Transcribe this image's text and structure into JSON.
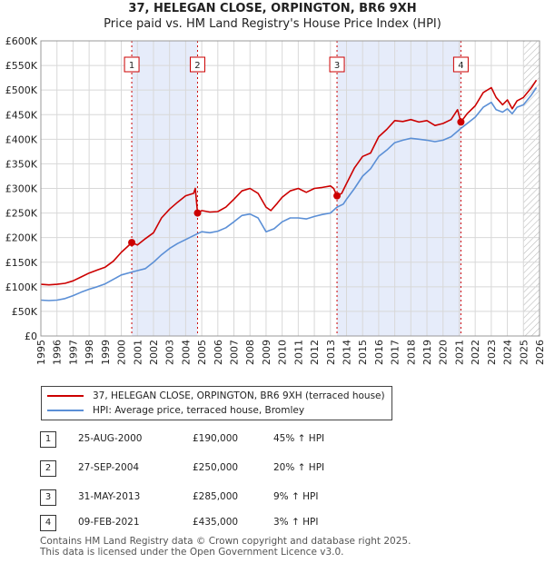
{
  "title_line1": "37, HELEGAN CLOSE, ORPINGTON, BR6 9XH",
  "title_line2": "Price paid vs. HM Land Registry's House Price Index (HPI)",
  "chart_data": {
    "type": "line",
    "x_range": [
      1995,
      2026
    ],
    "ylim": [
      0,
      600000
    ],
    "y_ticks": [
      0,
      50000,
      100000,
      150000,
      200000,
      250000,
      300000,
      350000,
      400000,
      450000,
      500000,
      550000,
      600000
    ],
    "y_tick_labels": [
      "£0",
      "£50K",
      "£100K",
      "£150K",
      "£200K",
      "£250K",
      "£300K",
      "£350K",
      "£400K",
      "£450K",
      "£500K",
      "£550K",
      "£600K"
    ],
    "x_ticks": [
      1995,
      1996,
      1997,
      1998,
      1999,
      2000,
      2001,
      2002,
      2003,
      2004,
      2005,
      2006,
      2007,
      2008,
      2009,
      2010,
      2011,
      2012,
      2013,
      2014,
      2015,
      2016,
      2017,
      2018,
      2019,
      2020,
      2021,
      2022,
      2023,
      2024,
      2025,
      2026
    ],
    "x_tick_labels": [
      "1995",
      "1996",
      "1997",
      "1998",
      "1999",
      "2000",
      "2001",
      "2002",
      "2003",
      "2004",
      "2005",
      "2006",
      "2007",
      "2008",
      "2009",
      "2010",
      "2011",
      "2012",
      "2013",
      "2014",
      "2015",
      "2016",
      "2017",
      "2018",
      "2019",
      "2020",
      "2021",
      "2022",
      "2023",
      "2024",
      "2025",
      "2026"
    ],
    "shaded_periods": [
      [
        2000.65,
        2004.74
      ],
      [
        2013.41,
        2021.11
      ]
    ],
    "future_hatch_from": 2025.0,
    "series": [
      {
        "name": "37, HELEGAN CLOSE, ORPINGTON, BR6 9XH (terraced house)",
        "color": "#cc0000",
        "points": [
          [
            1995.0,
            105000
          ],
          [
            1995.5,
            104000
          ],
          [
            1996.0,
            105000
          ],
          [
            1996.5,
            107000
          ],
          [
            1997.0,
            112000
          ],
          [
            1997.5,
            120000
          ],
          [
            1998.0,
            128000
          ],
          [
            1998.5,
            134000
          ],
          [
            1999.0,
            140000
          ],
          [
            1999.5,
            152000
          ],
          [
            2000.0,
            170000
          ],
          [
            2000.4,
            182000
          ],
          [
            2000.65,
            190000
          ],
          [
            2001.0,
            185000
          ],
          [
            2001.5,
            198000
          ],
          [
            2002.0,
            210000
          ],
          [
            2002.5,
            240000
          ],
          [
            2003.0,
            258000
          ],
          [
            2003.5,
            272000
          ],
          [
            2004.0,
            285000
          ],
          [
            2004.5,
            290000
          ],
          [
            2004.6,
            300000
          ],
          [
            2004.74,
            250000
          ],
          [
            2005.0,
            255000
          ],
          [
            2005.5,
            252000
          ],
          [
            2006.0,
            253000
          ],
          [
            2006.5,
            262000
          ],
          [
            2007.0,
            278000
          ],
          [
            2007.5,
            295000
          ],
          [
            2008.0,
            300000
          ],
          [
            2008.5,
            290000
          ],
          [
            2009.0,
            262000
          ],
          [
            2009.3,
            255000
          ],
          [
            2009.7,
            270000
          ],
          [
            2010.0,
            282000
          ],
          [
            2010.5,
            295000
          ],
          [
            2011.0,
            300000
          ],
          [
            2011.5,
            292000
          ],
          [
            2012.0,
            300000
          ],
          [
            2012.5,
            302000
          ],
          [
            2013.0,
            305000
          ],
          [
            2013.2,
            300000
          ],
          [
            2013.41,
            285000
          ],
          [
            2013.7,
            290000
          ],
          [
            2014.0,
            310000
          ],
          [
            2014.5,
            342000
          ],
          [
            2015.0,
            365000
          ],
          [
            2015.5,
            372000
          ],
          [
            2016.0,
            405000
          ],
          [
            2016.5,
            420000
          ],
          [
            2017.0,
            438000
          ],
          [
            2017.5,
            436000
          ],
          [
            2018.0,
            440000
          ],
          [
            2018.5,
            435000
          ],
          [
            2019.0,
            438000
          ],
          [
            2019.5,
            428000
          ],
          [
            2020.0,
            432000
          ],
          [
            2020.5,
            440000
          ],
          [
            2020.9,
            460000
          ],
          [
            2021.11,
            435000
          ],
          [
            2021.5,
            452000
          ],
          [
            2022.0,
            468000
          ],
          [
            2022.5,
            495000
          ],
          [
            2023.0,
            505000
          ],
          [
            2023.3,
            485000
          ],
          [
            2023.7,
            470000
          ],
          [
            2024.0,
            480000
          ],
          [
            2024.3,
            462000
          ],
          [
            2024.6,
            478000
          ],
          [
            2025.0,
            485000
          ],
          [
            2025.5,
            505000
          ],
          [
            2025.8,
            520000
          ]
        ]
      },
      {
        "name": "HPI: Average price, terraced house, Bromley",
        "color": "#5b8fd6",
        "points": [
          [
            1995.0,
            73000
          ],
          [
            1995.5,
            72000
          ],
          [
            1996.0,
            73000
          ],
          [
            1996.5,
            76000
          ],
          [
            1997.0,
            82000
          ],
          [
            1997.5,
            89000
          ],
          [
            1998.0,
            95000
          ],
          [
            1998.5,
            100000
          ],
          [
            1999.0,
            106000
          ],
          [
            1999.5,
            115000
          ],
          [
            2000.0,
            124000
          ],
          [
            2000.65,
            130000
          ],
          [
            2001.0,
            133000
          ],
          [
            2001.5,
            137000
          ],
          [
            2002.0,
            150000
          ],
          [
            2002.5,
            165000
          ],
          [
            2003.0,
            178000
          ],
          [
            2003.5,
            188000
          ],
          [
            2004.0,
            196000
          ],
          [
            2004.74,
            208000
          ],
          [
            2005.0,
            212000
          ],
          [
            2005.5,
            210000
          ],
          [
            2006.0,
            213000
          ],
          [
            2006.5,
            220000
          ],
          [
            2007.0,
            232000
          ],
          [
            2007.5,
            245000
          ],
          [
            2008.0,
            248000
          ],
          [
            2008.5,
            240000
          ],
          [
            2009.0,
            212000
          ],
          [
            2009.5,
            218000
          ],
          [
            2010.0,
            232000
          ],
          [
            2010.5,
            240000
          ],
          [
            2011.0,
            240000
          ],
          [
            2011.5,
            238000
          ],
          [
            2012.0,
            243000
          ],
          [
            2012.5,
            247000
          ],
          [
            2013.0,
            250000
          ],
          [
            2013.41,
            262000
          ],
          [
            2013.8,
            268000
          ],
          [
            2014.0,
            278000
          ],
          [
            2014.5,
            300000
          ],
          [
            2015.0,
            325000
          ],
          [
            2015.5,
            340000
          ],
          [
            2016.0,
            365000
          ],
          [
            2016.5,
            378000
          ],
          [
            2017.0,
            393000
          ],
          [
            2017.5,
            398000
          ],
          [
            2018.0,
            402000
          ],
          [
            2018.5,
            400000
          ],
          [
            2019.0,
            398000
          ],
          [
            2019.5,
            395000
          ],
          [
            2020.0,
            398000
          ],
          [
            2020.5,
            405000
          ],
          [
            2021.11,
            422000
          ],
          [
            2021.5,
            432000
          ],
          [
            2022.0,
            445000
          ],
          [
            2022.5,
            465000
          ],
          [
            2023.0,
            475000
          ],
          [
            2023.3,
            460000
          ],
          [
            2023.7,
            455000
          ],
          [
            2024.0,
            462000
          ],
          [
            2024.3,
            452000
          ],
          [
            2024.6,
            465000
          ],
          [
            2025.0,
            470000
          ],
          [
            2025.5,
            490000
          ],
          [
            2025.8,
            505000
          ]
        ]
      }
    ],
    "sales": [
      {
        "n": "1",
        "x": 2000.65,
        "y": 190000
      },
      {
        "n": "2",
        "x": 2004.74,
        "y": 250000
      },
      {
        "n": "3",
        "x": 2013.41,
        "y": 285000
      },
      {
        "n": "4",
        "x": 2021.11,
        "y": 435000
      }
    ],
    "marker_y": 552000
  },
  "legend": {
    "property_label": "37, HELEGAN CLOSE, ORPINGTON, BR6 9XH (terraced house)",
    "hpi_label": "HPI: Average price, terraced house, Bromley",
    "property_color": "#cc0000",
    "hpi_color": "#5b8fd6"
  },
  "transactions": [
    {
      "n": "1",
      "date": "25-AUG-2000",
      "price": "£190,000",
      "hpi": "45% ↑ HPI"
    },
    {
      "n": "2",
      "date": "27-SEP-2004",
      "price": "£250,000",
      "hpi": "20% ↑ HPI"
    },
    {
      "n": "3",
      "date": "31-MAY-2013",
      "price": "£285,000",
      "hpi": "9% ↑ HPI"
    },
    {
      "n": "4",
      "date": "09-FEB-2021",
      "price": "£435,000",
      "hpi": "3% ↑ HPI"
    }
  ],
  "footer_line1": "Contains HM Land Registry data © Crown copyright and database right 2025.",
  "footer_line2": "This data is licensed under the Open Government Licence v3.0."
}
